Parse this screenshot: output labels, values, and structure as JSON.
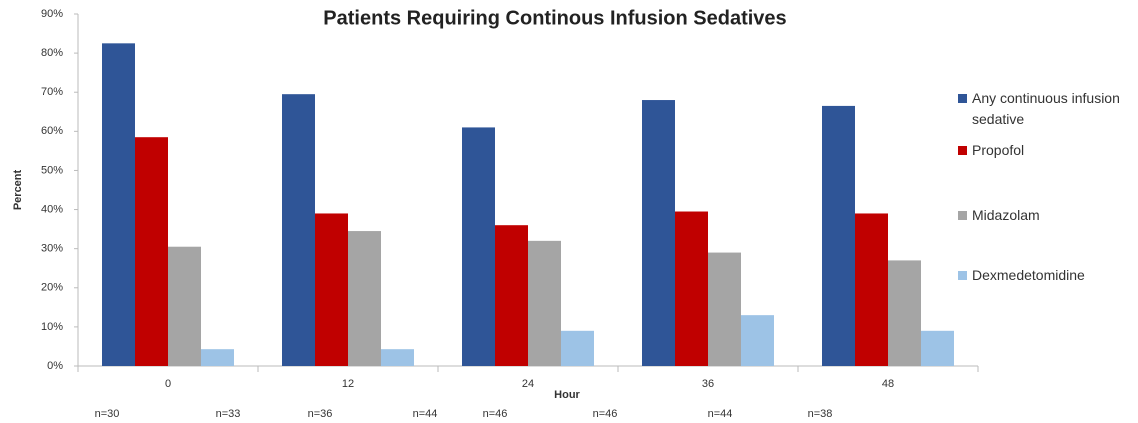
{
  "chart_data": {
    "type": "bar",
    "title": "Patients Requiring Continous Infusion Sedatives",
    "x_label": "Hour",
    "y_label": "Percent",
    "categories": [
      "0",
      "12",
      "24",
      "36",
      "48"
    ],
    "series": [
      {
        "name": "Any continuous infusion sedative",
        "color": "#2f5597",
        "values": [
          82.5,
          69.5,
          61,
          68,
          66.5
        ]
      },
      {
        "name": "Propofol",
        "color": "#c00000",
        "values": [
          58.5,
          39,
          36,
          39.5,
          39
        ]
      },
      {
        "name": "Midazolam",
        "color": "#a5a5a5",
        "values": [
          30.5,
          34.5,
          32,
          29,
          27
        ]
      },
      {
        "name": "Dexmedetomidine",
        "color": "#9dc3e6",
        "values": [
          4.3,
          4.3,
          9,
          13,
          9
        ]
      }
    ],
    "ylim": [
      0,
      90
    ],
    "yticks": [
      {
        "value": 0,
        "label": "0%"
      },
      {
        "value": 10,
        "label": "10%"
      },
      {
        "value": 20,
        "label": "20%"
      },
      {
        "value": 30,
        "label": "30%"
      },
      {
        "value": 40,
        "label": "40%"
      },
      {
        "value": 50,
        "label": "50%"
      },
      {
        "value": 60,
        "label": "60%"
      },
      {
        "value": 70,
        "label": "70%"
      },
      {
        "value": 80,
        "label": "80%"
      },
      {
        "value": 90,
        "label": "90%"
      }
    ],
    "grid": false,
    "legend": "right",
    "annotations": [
      "n=30",
      "n=33",
      "n=36",
      "n=44",
      "n=46",
      "n=46",
      "n=44",
      "n=38"
    ]
  }
}
